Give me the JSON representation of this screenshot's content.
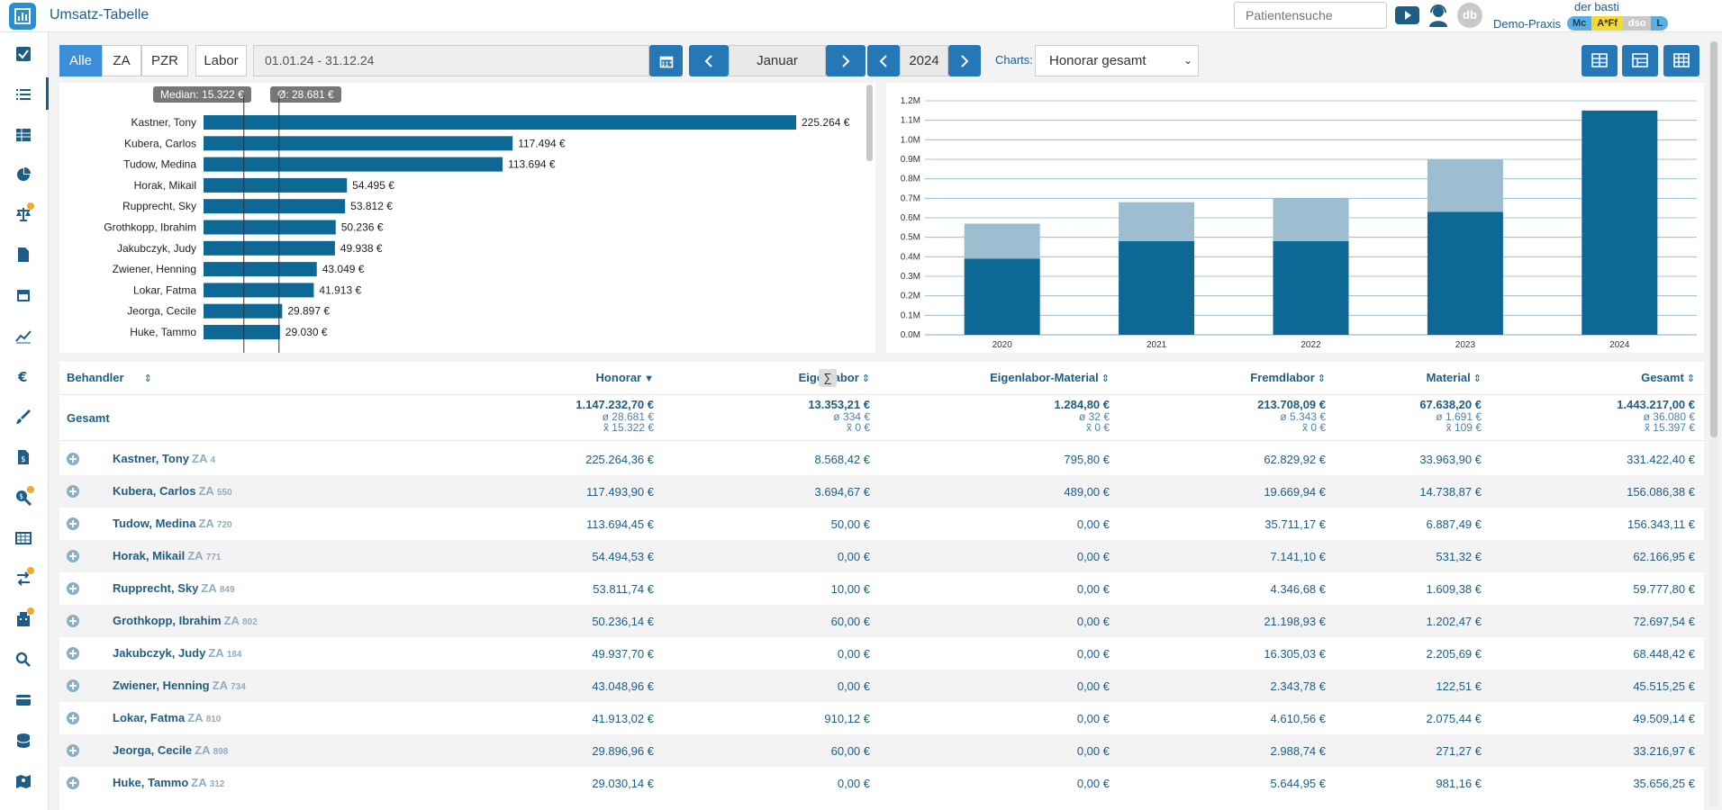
{
  "app": {
    "title": "Umsatz-Tabelle"
  },
  "topbar": {
    "search_placeholder": "Patientensuche",
    "user": "der basti",
    "practice": "Demo-Praxis",
    "avatar_initials": "db",
    "badges": [
      {
        "label": "Mc",
        "bg": "#5aaee0",
        "fg": "#1d3d5c"
      },
      {
        "label": "A*Ff",
        "bg": "#f5d832",
        "fg": "#333333"
      },
      {
        "label": "dso",
        "bg": "#c8c8c8",
        "fg": "#ffffff"
      },
      {
        "label": "L",
        "bg": "#5aaee0",
        "fg": "#1d3d5c"
      }
    ]
  },
  "sidebar": {
    "items": [
      {
        "icon": "checkbox-icon"
      },
      {
        "icon": "list-icon",
        "active": true
      },
      {
        "icon": "table-icon"
      },
      {
        "icon": "pie-chart-icon"
      },
      {
        "icon": "scale-icon",
        "dot": true
      },
      {
        "icon": "document-icon"
      },
      {
        "icon": "calendar-icon"
      },
      {
        "icon": "line-chart-icon"
      },
      {
        "icon": "euro-icon"
      },
      {
        "icon": "brush-icon"
      },
      {
        "icon": "invoice-icon"
      },
      {
        "icon": "search-money-icon",
        "dot": true
      },
      {
        "icon": "grid-table-icon"
      },
      {
        "icon": "transfer-icon",
        "dot": true
      },
      {
        "icon": "building-icon",
        "dot": true
      },
      {
        "icon": "magnifier-icon"
      },
      {
        "icon": "card-icon"
      },
      {
        "icon": "database-icon"
      },
      {
        "icon": "map-icon"
      }
    ]
  },
  "toolbar": {
    "filters": [
      "Alle",
      "ZA",
      "PZR"
    ],
    "selected_filter": "Alle",
    "labor": "Labor",
    "date_range": "01.01.24 - 31.12.24",
    "month": "Januar",
    "year": "2024",
    "charts_label": "Charts:",
    "chart_select": "Honorar gesamt"
  },
  "colors": {
    "accent": "#1d5d86",
    "bar": "#0e6896",
    "bar_light": "#9dbdd0",
    "button": "#2577b5"
  },
  "bar_chart": {
    "median_label": "Median: 15.322 €",
    "mean_label": "Ø: 28.681 €",
    "median": 15322,
    "mean": 28681,
    "max": 225264,
    "rows": [
      {
        "name": "Kastner, Tony",
        "value": 225264,
        "label": "225.264 €"
      },
      {
        "name": "Kubera, Carlos",
        "value": 117494,
        "label": "117.494 €"
      },
      {
        "name": "Tudow, Medina",
        "value": 113694,
        "label": "113.694 €"
      },
      {
        "name": "Horak, Mikail",
        "value": 54495,
        "label": "54.495 €"
      },
      {
        "name": "Rupprecht, Sky",
        "value": 53812,
        "label": "53.812 €"
      },
      {
        "name": "Grothkopp, Ibrahim",
        "value": 50236,
        "label": "50.236 €"
      },
      {
        "name": "Jakubczyk, Judy",
        "value": 49938,
        "label": "49.938 €"
      },
      {
        "name": "Zwiener, Henning",
        "value": 43049,
        "label": "43.049 €"
      },
      {
        "name": "Lokar, Fatma",
        "value": 41913,
        "label": "41.913 €"
      },
      {
        "name": "Jeorga, Cecile",
        "value": 29897,
        "label": "29.897 €"
      },
      {
        "name": "Huke, Tammo",
        "value": 29030,
        "label": "29.030 €"
      }
    ]
  },
  "chart_data": {
    "type": "bar",
    "stacked": true,
    "categories": [
      "2020",
      "2021",
      "2022",
      "2023",
      "2024"
    ],
    "series": [
      {
        "values": [
          0.39,
          0.48,
          0.48,
          0.63,
          1.15
        ]
      },
      {
        "values": [
          0.18,
          0.2,
          0.22,
          0.27,
          0.0
        ]
      }
    ],
    "yticks": [
      "0.0M",
      "0.1M",
      "0.2M",
      "0.3M",
      "0.4M",
      "0.5M",
      "0.6M",
      "0.7M",
      "0.8M",
      "0.9M",
      "1.0M",
      "1.1M",
      "1.2M"
    ],
    "ylim": [
      0,
      1.2
    ],
    "grid": true
  },
  "table": {
    "headers": {
      "behandler": "Behandler",
      "honorar": "Honorar",
      "eigenlabor": "Eigenlabor",
      "eigenlabor_material": "Eigenlabor-Material",
      "fremdlabor": "Fremdlabor",
      "material": "Material",
      "gesamt": "Gesamt"
    },
    "sigma": "∑",
    "total": {
      "label": "Gesamt",
      "honorar": [
        "1.147.232,70 €",
        "ø 28.681 €",
        "x̃ 15.322 €"
      ],
      "eigenlabor": [
        "13.353,21 €",
        "ø 334 €",
        "x̃ 0 €"
      ],
      "eigenlabor_material": [
        "1.284,80 €",
        "ø 32 €",
        "x̃ 0 €"
      ],
      "fremdlabor": [
        "213.708,09 €",
        "ø 5.343 €",
        "x̃ 0 €"
      ],
      "material": [
        "67.638,20 €",
        "ø 1.691 €",
        "x̃ 109 €"
      ],
      "gesamt": [
        "1.443.217,00 €",
        "ø 36.080 €",
        "x̃ 15.397 €"
      ]
    },
    "rows": [
      {
        "name": "Kastner, Tony",
        "za": "ZA",
        "za_num": "4",
        "honorar": "225.264,36 €",
        "eigenlabor": "8.568,42 €",
        "eigenlabor_material": "795,80 €",
        "fremdlabor": "62.829,92 €",
        "material": "33.963,90 €",
        "gesamt": "331.422,40 €"
      },
      {
        "name": "Kubera, Carlos",
        "za": "ZA",
        "za_num": "550",
        "honorar": "117.493,90 €",
        "eigenlabor": "3.694,67 €",
        "eigenlabor_material": "489,00 €",
        "fremdlabor": "19.669,94 €",
        "material": "14.738,87 €",
        "gesamt": "156.086,38 €"
      },
      {
        "name": "Tudow, Medina",
        "za": "ZA",
        "za_num": "720",
        "honorar": "113.694,45 €",
        "eigenlabor": "50,00 €",
        "eigenlabor_material": "0,00 €",
        "fremdlabor": "35.711,17 €",
        "material": "6.887,49 €",
        "gesamt": "156.343,11 €"
      },
      {
        "name": "Horak, Mikail",
        "za": "ZA",
        "za_num": "771",
        "honorar": "54.494,53 €",
        "eigenlabor": "0,00 €",
        "eigenlabor_material": "0,00 €",
        "fremdlabor": "7.141,10 €",
        "material": "531,32 €",
        "gesamt": "62.166,95 €"
      },
      {
        "name": "Rupprecht, Sky",
        "za": "ZA",
        "za_num": "849",
        "honorar": "53.811,74 €",
        "eigenlabor": "10,00 €",
        "eigenlabor_material": "0,00 €",
        "fremdlabor": "4.346,68 €",
        "material": "1.609,38 €",
        "gesamt": "59.777,80 €"
      },
      {
        "name": "Grothkopp, Ibrahim",
        "za": "ZA",
        "za_num": "802",
        "honorar": "50.236,14 €",
        "eigenlabor": "60,00 €",
        "eigenlabor_material": "0,00 €",
        "fremdlabor": "21.198,93 €",
        "material": "1.202,47 €",
        "gesamt": "72.697,54 €"
      },
      {
        "name": "Jakubczyk, Judy",
        "za": "ZA",
        "za_num": "184",
        "honorar": "49.937,70 €",
        "eigenlabor": "0,00 €",
        "eigenlabor_material": "0,00 €",
        "fremdlabor": "16.305,03 €",
        "material": "2.205,69 €",
        "gesamt": "68.448,42 €"
      },
      {
        "name": "Zwiener, Henning",
        "za": "ZA",
        "za_num": "734",
        "honorar": "43.048,96 €",
        "eigenlabor": "0,00 €",
        "eigenlabor_material": "0,00 €",
        "fremdlabor": "2.343,78 €",
        "material": "122,51 €",
        "gesamt": "45.515,25 €"
      },
      {
        "name": "Lokar, Fatma",
        "za": "ZA",
        "za_num": "810",
        "honorar": "41.913,02 €",
        "eigenlabor": "910,12 €",
        "eigenlabor_material": "0,00 €",
        "fremdlabor": "4.610,56 €",
        "material": "2.075,44 €",
        "gesamt": "49.509,14 €"
      },
      {
        "name": "Jeorga, Cecile",
        "za": "ZA",
        "za_num": "898",
        "honorar": "29.896,96 €",
        "eigenlabor": "60,00 €",
        "eigenlabor_material": "0,00 €",
        "fremdlabor": "2.988,74 €",
        "material": "271,27 €",
        "gesamt": "33.216,97 €"
      },
      {
        "name": "Huke, Tammo",
        "za": "ZA",
        "za_num": "312",
        "honorar": "29.030,14 €",
        "eigenlabor": "0,00 €",
        "eigenlabor_material": "0,00 €",
        "fremdlabor": "5.644,95 €",
        "material": "981,16 €",
        "gesamt": "35.656,25 €"
      }
    ]
  }
}
